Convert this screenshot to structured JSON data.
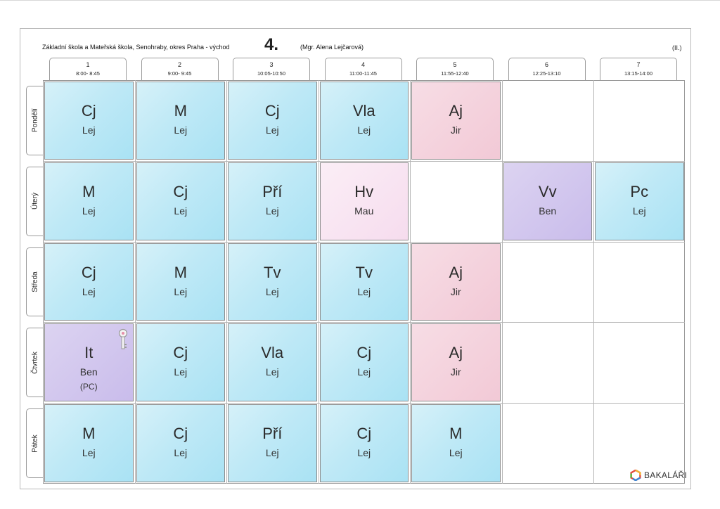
{
  "header": {
    "school": "Základní škola a Mateřská škola, Senohraby, okres Praha - východ",
    "class": "4.",
    "teacher": "(Mgr. Alena Lejčarová)",
    "mark": "(II.)"
  },
  "periods": [
    {
      "num": "1",
      "time": "8:00- 8:45"
    },
    {
      "num": "2",
      "time": "9:00- 9:45"
    },
    {
      "num": "3",
      "time": "10:05-10:50"
    },
    {
      "num": "4",
      "time": "11:00-11:45"
    },
    {
      "num": "5",
      "time": "11:55-12:40"
    },
    {
      "num": "6",
      "time": "12:25-13:10"
    },
    {
      "num": "7",
      "time": "13:15-14:00"
    }
  ],
  "days": [
    "Pondělí",
    "Úterý",
    "Středa",
    "Čtvrtek",
    "Pátek"
  ],
  "colors": {
    "blue": "#bfe9f6",
    "pink": "#f2c9d6",
    "light_pink": "#f6dcee",
    "purple": "#c9bceb"
  },
  "lessons": [
    {
      "day": 0,
      "period": 0,
      "subject": "Cj",
      "teacher": "Lej",
      "color": "blue"
    },
    {
      "day": 0,
      "period": 1,
      "subject": "M",
      "teacher": "Lej",
      "color": "blue"
    },
    {
      "day": 0,
      "period": 2,
      "subject": "Cj",
      "teacher": "Lej",
      "color": "blue"
    },
    {
      "day": 0,
      "period": 3,
      "subject": "Vla",
      "teacher": "Lej",
      "color": "blue"
    },
    {
      "day": 0,
      "period": 4,
      "subject": "Aj",
      "teacher": "Jir",
      "color": "pink"
    },
    {
      "day": 1,
      "period": 0,
      "subject": "M",
      "teacher": "Lej",
      "color": "blue"
    },
    {
      "day": 1,
      "period": 1,
      "subject": "Cj",
      "teacher": "Lej",
      "color": "blue"
    },
    {
      "day": 1,
      "period": 2,
      "subject": "Pří",
      "teacher": "Lej",
      "color": "blue"
    },
    {
      "day": 1,
      "period": 3,
      "subject": "Hv",
      "teacher": "Mau",
      "color": "light_pink"
    },
    {
      "day": 1,
      "period": 5,
      "subject": "Vv",
      "teacher": "Ben",
      "color": "purple"
    },
    {
      "day": 1,
      "period": 6,
      "subject": "Pc",
      "teacher": "Lej",
      "color": "blue"
    },
    {
      "day": 2,
      "period": 0,
      "subject": "Cj",
      "teacher": "Lej",
      "color": "blue"
    },
    {
      "day": 2,
      "period": 1,
      "subject": "M",
      "teacher": "Lej",
      "color": "blue"
    },
    {
      "day": 2,
      "period": 2,
      "subject": "Tv",
      "teacher": "Lej",
      "color": "blue"
    },
    {
      "day": 2,
      "period": 3,
      "subject": "Tv",
      "teacher": "Lej",
      "color": "blue"
    },
    {
      "day": 2,
      "period": 4,
      "subject": "Aj",
      "teacher": "Jir",
      "color": "pink"
    },
    {
      "day": 3,
      "period": 0,
      "subject": "It",
      "teacher": "Ben",
      "room": "(PC)",
      "color": "purple",
      "icon": "key-icon"
    },
    {
      "day": 3,
      "period": 1,
      "subject": "Cj",
      "teacher": "Lej",
      "color": "blue"
    },
    {
      "day": 3,
      "period": 2,
      "subject": "Vla",
      "teacher": "Lej",
      "color": "blue"
    },
    {
      "day": 3,
      "period": 3,
      "subject": "Cj",
      "teacher": "Lej",
      "color": "blue"
    },
    {
      "day": 3,
      "period": 4,
      "subject": "Aj",
      "teacher": "Jir",
      "color": "pink"
    },
    {
      "day": 4,
      "period": 0,
      "subject": "M",
      "teacher": "Lej",
      "color": "blue"
    },
    {
      "day": 4,
      "period": 1,
      "subject": "Cj",
      "teacher": "Lej",
      "color": "blue"
    },
    {
      "day": 4,
      "period": 2,
      "subject": "Pří",
      "teacher": "Lej",
      "color": "blue"
    },
    {
      "day": 4,
      "period": 3,
      "subject": "Cj",
      "teacher": "Lej",
      "color": "blue"
    },
    {
      "day": 4,
      "period": 4,
      "subject": "M",
      "teacher": "Lej",
      "color": "blue"
    }
  ],
  "brand": {
    "name": "BAKALÁŘI",
    "icon": "bakalari-logo-icon"
  }
}
